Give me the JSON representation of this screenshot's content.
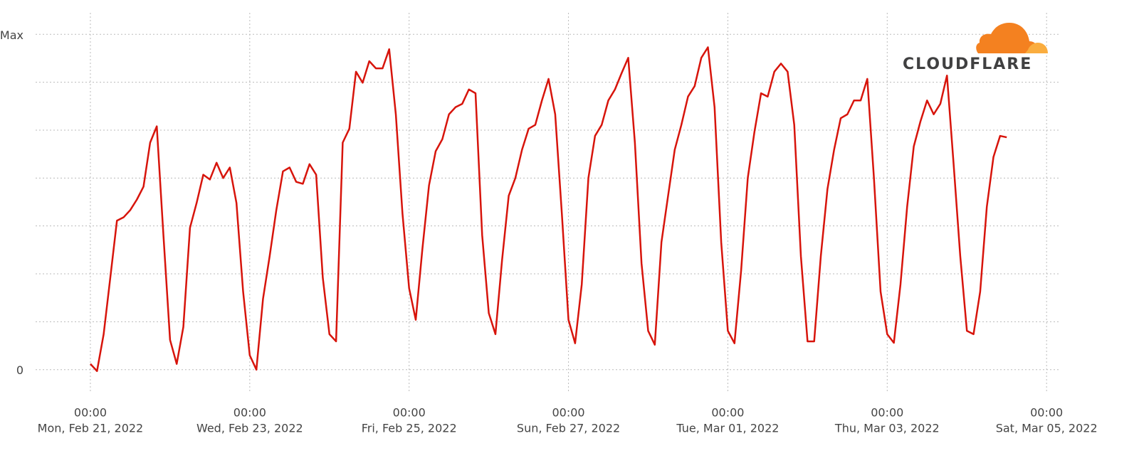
{
  "chart_data": {
    "type": "line",
    "logo_text": "CLOUDFLARE",
    "color": "#d7140b",
    "xlim": [
      "2022-02-20T07:30",
      "2022-03-05T04:15"
    ],
    "xticks": [
      {
        "value": "2022-02-21T00:00",
        "label": [
          "00:00",
          "Mon, Feb 21, 2022"
        ]
      },
      {
        "value": "2022-02-23T00:00",
        "label": [
          "00:00",
          "Wed, Feb 23, 2022"
        ]
      },
      {
        "value": "2022-02-25T00:00",
        "label": [
          "00:00",
          "Fri, Feb 25, 2022"
        ]
      },
      {
        "value": "2022-02-27T00:00",
        "label": [
          "00:00",
          "Sun, Feb 27, 2022"
        ]
      },
      {
        "value": "2022-03-01T00:00",
        "label": [
          "00:00",
          "Tue, Mar 01, 2022"
        ]
      },
      {
        "value": "2022-03-03T00:00",
        "label": [
          "00:00",
          "Thu, Mar 03, 2022"
        ]
      },
      {
        "value": "2022-03-05T00:00",
        "label": [
          "00:00",
          "Sat, Mar 05, 2022"
        ]
      }
    ],
    "ylim": [
      -0.45,
      7.45
    ],
    "yticks": [
      0,
      {
        "value": 7,
        "label": "Max"
      }
    ],
    "ygrid": [
      0,
      1,
      2,
      3,
      4,
      5,
      6,
      7
    ],
    "grid": true,
    "x": [
      "2022-02-21T00:00",
      "2022-02-21T02:00",
      "2022-02-21T04:00",
      "2022-02-21T06:00",
      "2022-02-21T08:00",
      "2022-02-21T10:00",
      "2022-02-21T12:00",
      "2022-02-21T14:00",
      "2022-02-21T16:00",
      "2022-02-21T18:00",
      "2022-02-21T20:00",
      "2022-02-21T22:00",
      "2022-02-22T00:00",
      "2022-02-22T02:00",
      "2022-02-22T04:00",
      "2022-02-22T06:00",
      "2022-02-22T08:00",
      "2022-02-22T10:00",
      "2022-02-22T12:00",
      "2022-02-22T14:00",
      "2022-02-22T16:00",
      "2022-02-22T18:00",
      "2022-02-22T20:00",
      "2022-02-22T22:00",
      "2022-02-23T00:00",
      "2022-02-23T02:00",
      "2022-02-23T04:00",
      "2022-02-23T06:00",
      "2022-02-23T08:00",
      "2022-02-23T10:00",
      "2022-02-23T12:00",
      "2022-02-23T14:00",
      "2022-02-23T16:00",
      "2022-02-23T18:00",
      "2022-02-23T20:00",
      "2022-02-23T22:00",
      "2022-02-24T00:00",
      "2022-02-24T02:00",
      "2022-02-24T04:00",
      "2022-02-24T06:00",
      "2022-02-24T08:00",
      "2022-02-24T10:00",
      "2022-02-24T12:00",
      "2022-02-24T14:00",
      "2022-02-24T16:00",
      "2022-02-24T18:00",
      "2022-02-24T20:00",
      "2022-02-24T22:00",
      "2022-02-25T00:00",
      "2022-02-25T02:00",
      "2022-02-25T04:00",
      "2022-02-25T06:00",
      "2022-02-25T08:00",
      "2022-02-25T10:00",
      "2022-02-25T12:00",
      "2022-02-25T14:00",
      "2022-02-25T16:00",
      "2022-02-25T18:00",
      "2022-02-25T20:00",
      "2022-02-25T22:00",
      "2022-02-26T00:00",
      "2022-02-26T02:00",
      "2022-02-26T04:00",
      "2022-02-26T06:00",
      "2022-02-26T08:00",
      "2022-02-26T10:00",
      "2022-02-26T12:00",
      "2022-02-26T14:00",
      "2022-02-26T16:00",
      "2022-02-26T18:00",
      "2022-02-26T20:00",
      "2022-02-26T22:00",
      "2022-02-27T00:00",
      "2022-02-27T02:00",
      "2022-02-27T04:00",
      "2022-02-27T06:00",
      "2022-02-27T08:00",
      "2022-02-27T10:00",
      "2022-02-27T12:00",
      "2022-02-27T14:00",
      "2022-02-27T16:00",
      "2022-02-27T18:00",
      "2022-02-27T20:00",
      "2022-02-27T22:00",
      "2022-02-28T00:00",
      "2022-02-28T02:00",
      "2022-02-28T04:00",
      "2022-02-28T06:00",
      "2022-02-28T08:00",
      "2022-02-28T10:00",
      "2022-02-28T12:00",
      "2022-02-28T14:00",
      "2022-02-28T16:00",
      "2022-02-28T18:00",
      "2022-02-28T20:00",
      "2022-02-28T22:00",
      "2022-03-01T00:00",
      "2022-03-01T02:00",
      "2022-03-01T04:00",
      "2022-03-01T06:00",
      "2022-03-01T08:00",
      "2022-03-01T10:00",
      "2022-03-01T12:00",
      "2022-03-01T14:00",
      "2022-03-01T16:00",
      "2022-03-01T18:00",
      "2022-03-01T20:00",
      "2022-03-01T22:00",
      "2022-03-02T00:00",
      "2022-03-02T02:00",
      "2022-03-02T04:00",
      "2022-03-02T06:00",
      "2022-03-02T08:00",
      "2022-03-02T10:00",
      "2022-03-02T12:00",
      "2022-03-02T14:00",
      "2022-03-02T16:00",
      "2022-03-02T18:00",
      "2022-03-02T20:00",
      "2022-03-02T22:00",
      "2022-03-03T00:00",
      "2022-03-03T02:00",
      "2022-03-03T04:00",
      "2022-03-03T06:00",
      "2022-03-03T08:00",
      "2022-03-03T10:00",
      "2022-03-03T12:00",
      "2022-03-03T14:00",
      "2022-03-03T16:00",
      "2022-03-03T18:00",
      "2022-03-03T20:00",
      "2022-03-03T22:00",
      "2022-03-04T00:00",
      "2022-03-04T02:00",
      "2022-03-04T04:00",
      "2022-03-04T06:00",
      "2022-03-04T08:00",
      "2022-03-04T10:00",
      "2022-03-04T12:00"
    ],
    "values": [
      0.12,
      -0.03,
      0.74,
      1.92,
      3.11,
      3.18,
      3.33,
      3.55,
      3.82,
      4.74,
      5.08,
      2.81,
      0.62,
      0.12,
      0.89,
      2.96,
      3.48,
      4.07,
      3.97,
      4.32,
      4.0,
      4.22,
      3.48,
      1.63,
      0.3,
      0,
      1.48,
      2.37,
      3.33,
      4.14,
      4.22,
      3.92,
      3.88,
      4.29,
      4.07,
      1.92,
      0.74,
      0.59,
      4.74,
      5.03,
      6.22,
      5.99,
      6.44,
      6.29,
      6.29,
      6.69,
      5.33,
      3.26,
      1.7,
      1.04,
      2.52,
      3.85,
      4.56,
      4.81,
      5.33,
      5.48,
      5.55,
      5.85,
      5.77,
      2.81,
      1.18,
      0.74,
      2.29,
      3.63,
      4.0,
      4.59,
      5.03,
      5.11,
      5.62,
      6.07,
      5.33,
      3.26,
      1.04,
      0.55,
      1.78,
      4.0,
      4.88,
      5.11,
      5.62,
      5.85,
      6.19,
      6.51,
      4.74,
      2.22,
      0.81,
      0.52,
      2.66,
      3.63,
      4.59,
      5.11,
      5.7,
      5.92,
      6.51,
      6.73,
      5.48,
      2.66,
      0.81,
      0.55,
      2.07,
      4.0,
      4.96,
      5.77,
      5.7,
      6.22,
      6.39,
      6.22,
      5.11,
      2.37,
      0.59,
      0.59,
      2.37,
      3.77,
      4.59,
      5.25,
      5.33,
      5.62,
      5.62,
      6.07,
      4.0,
      1.63,
      0.74,
      0.56,
      1.78,
      3.4,
      4.66,
      5.18,
      5.62,
      5.33,
      5.55,
      6.14,
      4.29,
      2.37,
      0.81,
      0.74,
      1.63,
      3.4,
      4.44,
      4.88,
      4.85
    ]
  }
}
